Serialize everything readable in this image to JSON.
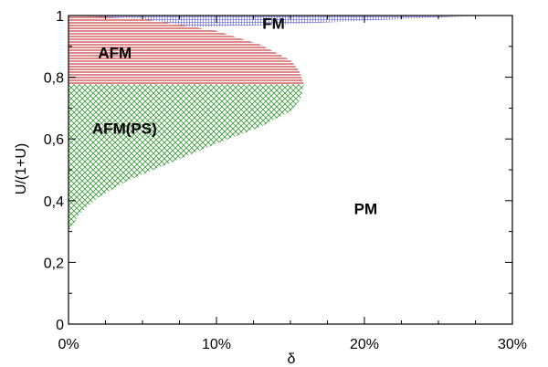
{
  "chart_data": {
    "type": "area",
    "title": "",
    "xlabel": "δ",
    "ylabel": "U/(1+U)",
    "xlim": [
      0,
      30
    ],
    "ylim": [
      0,
      1
    ],
    "x_unit": "%",
    "x_ticks": [
      {
        "value": 0,
        "label": "0%"
      },
      {
        "value": 10,
        "label": "10%"
      },
      {
        "value": 20,
        "label": "20%"
      },
      {
        "value": 30,
        "label": "30%"
      }
    ],
    "y_ticks": [
      {
        "value": 0,
        "label": "0"
      },
      {
        "value": 0.2,
        "label": "0,2"
      },
      {
        "value": 0.4,
        "label": "0,4"
      },
      {
        "value": 0.6,
        "label": "0,6"
      },
      {
        "value": 0.8,
        "label": "0,8"
      },
      {
        "value": 1,
        "label": "1"
      }
    ],
    "grid": false,
    "regions": [
      {
        "name": "FM",
        "color": "#7b7bd6",
        "pattern": "fine-grid",
        "boundary": {
          "x": [
            0,
            2,
            5,
            8,
            12,
            16,
            20,
            24,
            27,
            28.5,
            28.5,
            0
          ],
          "y": [
            0.963,
            0.962,
            0.961,
            0.963,
            0.967,
            0.974,
            0.983,
            0.992,
            0.998,
            1.0,
            1.0,
            1.0
          ]
        }
      },
      {
        "name": "AFM",
        "color": "#c8282b",
        "pattern": "horizontal-lines",
        "boundary": {
          "x": [
            0,
            5,
            10,
            13,
            15,
            15.6,
            15.9,
            15.9,
            0
          ],
          "y": [
            1.0,
            0.99,
            0.95,
            0.905,
            0.855,
            0.82,
            0.78,
            0.777,
            0.777
          ]
        }
      },
      {
        "name": "AFM(PS)",
        "color": "#3a9a3a",
        "pattern": "cross-hatch",
        "boundary": {
          "x": [
            0,
            15.9,
            15.7,
            15,
            13,
            10,
            7,
            4,
            2,
            0.8,
            0.2,
            0
          ],
          "y": [
            0.777,
            0.777,
            0.73,
            0.69,
            0.64,
            0.585,
            0.525,
            0.465,
            0.41,
            0.36,
            0.315,
            0.3
          ]
        }
      }
    ],
    "annotations": [
      {
        "text": "FM",
        "x": 13.1,
        "y": 0.975
      },
      {
        "text": "AFM",
        "x": 2.0,
        "y": 0.88
      },
      {
        "text": "AFM(PS)",
        "x": 1.6,
        "y": 0.635
      },
      {
        "text": "PM",
        "x": 19.3,
        "y": 0.375
      }
    ]
  }
}
